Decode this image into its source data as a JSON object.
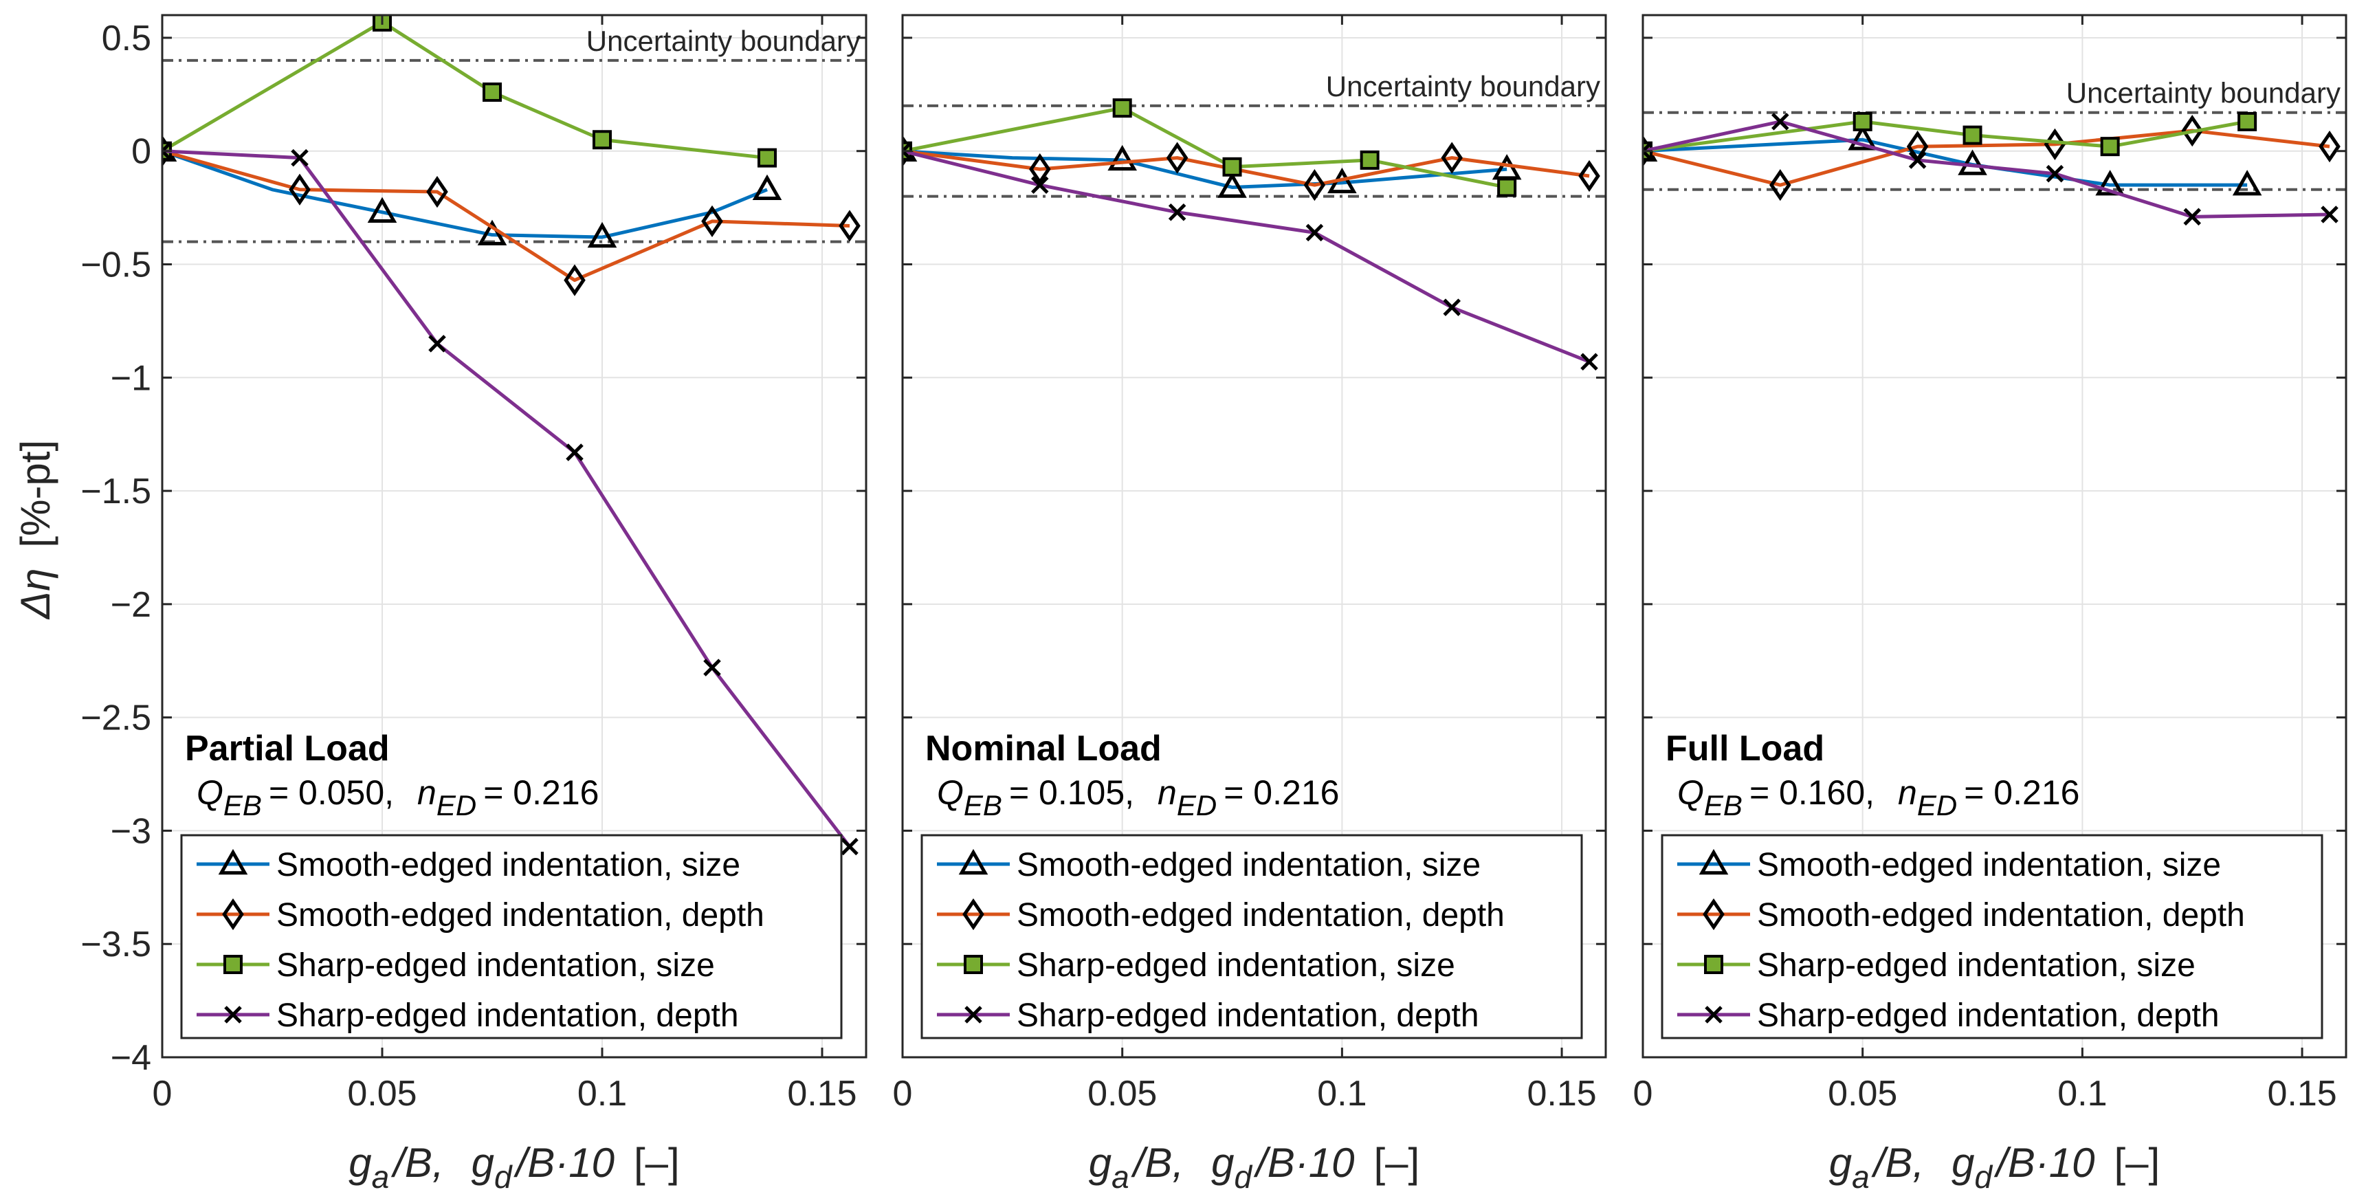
{
  "figure": {
    "ylabel_symbol": "Δη",
    "ylabel_unit": "[%-pt]",
    "xlabel": {
      "ga": "g",
      "ga_sub": "a",
      "ga_tail": "/B,",
      "gd": "g",
      "gd_sub": "d",
      "gd_tail": "/B·10",
      "unit": "[–]"
    },
    "boundary_label": "Uncertainty boundary"
  },
  "colors": {
    "smooth_size": "#0072BD",
    "smooth_depth": "#D95319",
    "sharp_size": "#77AC30",
    "sharp_depth": "#7E2F8E",
    "boundary": "#555555",
    "grid": "#e3e3e3"
  },
  "legend": [
    {
      "name": "Smooth-edged indentation, size",
      "marker": "triangle"
    },
    {
      "name": "Smooth-edged indentation, depth",
      "marker": "diamond"
    },
    {
      "name": "Sharp-edged indentation, size",
      "marker": "square"
    },
    {
      "name": "Sharp-edged indentation, depth",
      "marker": "x"
    }
  ],
  "chart_data": [
    {
      "type": "line",
      "title": "Partial Load",
      "condition": {
        "q_label": "Q",
        "q_sub": "EB",
        "q_value": "= 0.050,",
        "n_label": "n",
        "n_sub": "ED",
        "n_value": "= 0.216"
      },
      "xlim": [
        0,
        0.16
      ],
      "ylim": [
        -4,
        0.6
      ],
      "xticks": [
        0,
        0.05,
        0.1,
        0.15
      ],
      "xtick_labels": [
        "0",
        "0.05",
        "0.1",
        "0.15"
      ],
      "yticks": [
        -4,
        -3.5,
        -3,
        -2.5,
        -2,
        -1.5,
        -1,
        -0.5,
        0,
        0.5
      ],
      "ytick_labels": [
        "−4",
        "−3.5",
        "−3",
        "−2.5",
        "−2",
        "−1.5",
        "−1",
        "−0.5",
        "0",
        "0.5"
      ],
      "uncertainty_boundary": [
        0.4,
        -0.4
      ],
      "series": [
        {
          "name": "Smooth-edged indentation, size",
          "x": [
            0,
            0.025,
            0.05,
            0.075,
            0.1,
            0.125,
            0.1375
          ],
          "y": [
            0,
            -0.17,
            -0.27,
            -0.37,
            -0.38,
            -0.27,
            -0.17
          ],
          "markers": [
            true,
            false,
            true,
            true,
            true,
            false,
            true
          ]
        },
        {
          "name": "Smooth-edged indentation, depth",
          "x": [
            0,
            0.03125,
            0.0625,
            0.09375,
            0.125,
            0.15625
          ],
          "y": [
            0,
            -0.17,
            -0.18,
            -0.57,
            -0.31,
            -0.33
          ],
          "markers": [
            true,
            true,
            true,
            true,
            true,
            true
          ]
        },
        {
          "name": "Sharp-edged indentation, size",
          "x": [
            0,
            0.05,
            0.075,
            0.1,
            0.1375
          ],
          "y": [
            0,
            0.57,
            0.26,
            0.05,
            -0.03
          ],
          "markers": [
            true,
            true,
            true,
            true,
            true
          ]
        },
        {
          "name": "Sharp-edged indentation, depth",
          "x": [
            0,
            0.03125,
            0.0625,
            0.09375,
            0.125,
            0.15625
          ],
          "y": [
            0,
            -0.03,
            -0.85,
            -1.33,
            -2.28,
            -3.07
          ],
          "markers": [
            true,
            true,
            true,
            true,
            true,
            true
          ]
        }
      ]
    },
    {
      "type": "line",
      "title": "Nominal Load",
      "condition": {
        "q_label": "Q",
        "q_sub": "EB",
        "q_value": "= 0.105,",
        "n_label": "n",
        "n_sub": "ED",
        "n_value": "= 0.216"
      },
      "xlim": [
        0,
        0.16
      ],
      "ylim": [
        -4,
        0.6
      ],
      "xticks": [
        0,
        0.05,
        0.1,
        0.15
      ],
      "xtick_labels": [
        "0",
        "0.05",
        "0.1",
        "0.15"
      ],
      "yticks": [
        -4,
        -3.5,
        -3,
        -2.5,
        -2,
        -1.5,
        -1,
        -0.5,
        0,
        0.5
      ],
      "uncertainty_boundary": [
        0.2,
        -0.2
      ],
      "series": [
        {
          "name": "Smooth-edged indentation, size",
          "x": [
            0,
            0.025,
            0.05,
            0.075,
            0.1,
            0.1375
          ],
          "y": [
            0,
            -0.03,
            -0.04,
            -0.16,
            -0.14,
            -0.08
          ],
          "markers": [
            true,
            false,
            true,
            true,
            true,
            true
          ]
        },
        {
          "name": "Smooth-edged indentation, depth",
          "x": [
            0,
            0.03125,
            0.0625,
            0.09375,
            0.125,
            0.15625
          ],
          "y": [
            0,
            -0.08,
            -0.03,
            -0.15,
            -0.03,
            -0.11
          ],
          "markers": [
            true,
            true,
            true,
            true,
            true,
            true
          ]
        },
        {
          "name": "Sharp-edged indentation, size",
          "x": [
            0,
            0.05,
            0.075,
            0.1063,
            0.1375
          ],
          "y": [
            0,
            0.19,
            -0.07,
            -0.04,
            -0.16
          ],
          "markers": [
            true,
            true,
            true,
            true,
            true
          ]
        },
        {
          "name": "Sharp-edged indentation, depth",
          "x": [
            0,
            0.03125,
            0.0625,
            0.09375,
            0.125,
            0.15625
          ],
          "y": [
            0,
            -0.15,
            -0.27,
            -0.36,
            -0.69,
            -0.93
          ],
          "markers": [
            true,
            true,
            true,
            true,
            true,
            true
          ]
        }
      ]
    },
    {
      "type": "line",
      "title": "Full Load",
      "condition": {
        "q_label": "Q",
        "q_sub": "EB",
        "q_value": "= 0.160,",
        "n_label": "n",
        "n_sub": "ED",
        "n_value": "= 0.216"
      },
      "xlim": [
        0,
        0.16
      ],
      "ylim": [
        -4,
        0.6
      ],
      "xticks": [
        0,
        0.05,
        0.1,
        0.15
      ],
      "xtick_labels": [
        "0",
        "0.05",
        "0.1",
        "0.15"
      ],
      "yticks": [
        -4,
        -3.5,
        -3,
        -2.5,
        -2,
        -1.5,
        -1,
        -0.5,
        0,
        0.5
      ],
      "uncertainty_boundary": [
        0.17,
        -0.17
      ],
      "series": [
        {
          "name": "Smooth-edged indentation, size",
          "x": [
            0,
            0.05,
            0.075,
            0.1063,
            0.1375
          ],
          "y": [
            0,
            0.05,
            -0.06,
            -0.15,
            -0.15
          ],
          "markers": [
            true,
            true,
            true,
            true,
            true
          ]
        },
        {
          "name": "Smooth-edged indentation, depth",
          "x": [
            0,
            0.03125,
            0.0625,
            0.09375,
            0.125,
            0.15625
          ],
          "y": [
            0,
            -0.15,
            0.02,
            0.03,
            0.09,
            0.02
          ],
          "markers": [
            true,
            true,
            true,
            true,
            true,
            true
          ]
        },
        {
          "name": "Sharp-edged indentation, size",
          "x": [
            0,
            0.05,
            0.075,
            0.1063,
            0.1375
          ],
          "y": [
            0,
            0.13,
            0.07,
            0.02,
            0.13
          ],
          "markers": [
            true,
            true,
            true,
            true,
            true
          ]
        },
        {
          "name": "Sharp-edged indentation, depth",
          "x": [
            0,
            0.03125,
            0.0625,
            0.09375,
            0.125,
            0.15625
          ],
          "y": [
            0,
            0.13,
            -0.04,
            -0.1,
            -0.29,
            -0.28
          ],
          "markers": [
            true,
            true,
            true,
            true,
            true,
            true
          ]
        }
      ]
    }
  ]
}
